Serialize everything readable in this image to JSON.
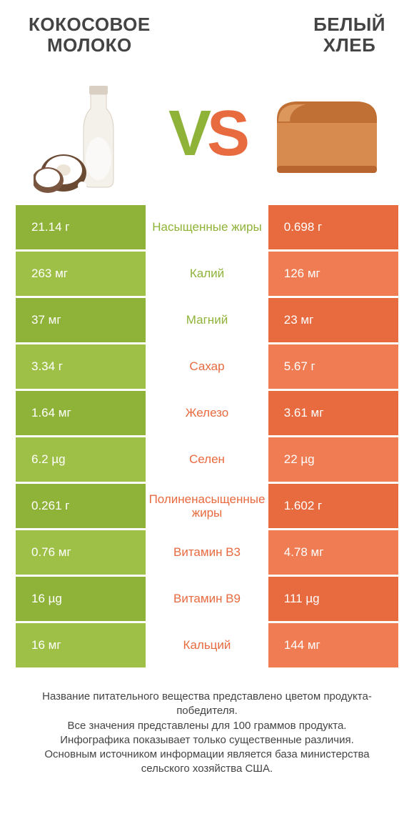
{
  "header": {
    "left_line1": "КОКОСОВОЕ",
    "left_line2": "МОЛОКО",
    "right_line1": "БЕЛЫЙ",
    "right_line2": "ХЛЕБ"
  },
  "colors": {
    "green": "#8fb339",
    "green_alt": "#9ec047",
    "orange": "#e86a3f",
    "orange_alt": "#ef7c52",
    "text": "#444444"
  },
  "vs": {
    "v": "V",
    "s": "S"
  },
  "rows": [
    {
      "left": "21.14 г",
      "mid": "Насыщенные жиры",
      "right": "0.698 г",
      "winner": "left"
    },
    {
      "left": "263 мг",
      "mid": "Калий",
      "right": "126 мг",
      "winner": "left"
    },
    {
      "left": "37 мг",
      "mid": "Магний",
      "right": "23 мг",
      "winner": "left"
    },
    {
      "left": "3.34 г",
      "mid": "Сахар",
      "right": "5.67 г",
      "winner": "right"
    },
    {
      "left": "1.64 мг",
      "mid": "Железо",
      "right": "3.61 мг",
      "winner": "right"
    },
    {
      "left": "6.2 µg",
      "mid": "Селен",
      "right": "22 µg",
      "winner": "right"
    },
    {
      "left": "0.261 г",
      "mid": "Полиненасыщенные жиры",
      "right": "1.602 г",
      "winner": "right"
    },
    {
      "left": "0.76 мг",
      "mid": "Витамин B3",
      "right": "4.78 мг",
      "winner": "right"
    },
    {
      "left": "16 µg",
      "mid": "Витамин B9",
      "right": "111 µg",
      "winner": "right"
    },
    {
      "left": "16 мг",
      "mid": "Кальций",
      "right": "144 мг",
      "winner": "right"
    }
  ],
  "footer": {
    "l1": "Название питательного вещества представлено цветом продукта-победителя.",
    "l2": "Все значения представлены для 100 граммов продукта.",
    "l3": "Инфографика показывает только существенные различия.",
    "l4": "Основным источником информации является база министерства сельского хозяйства США."
  }
}
